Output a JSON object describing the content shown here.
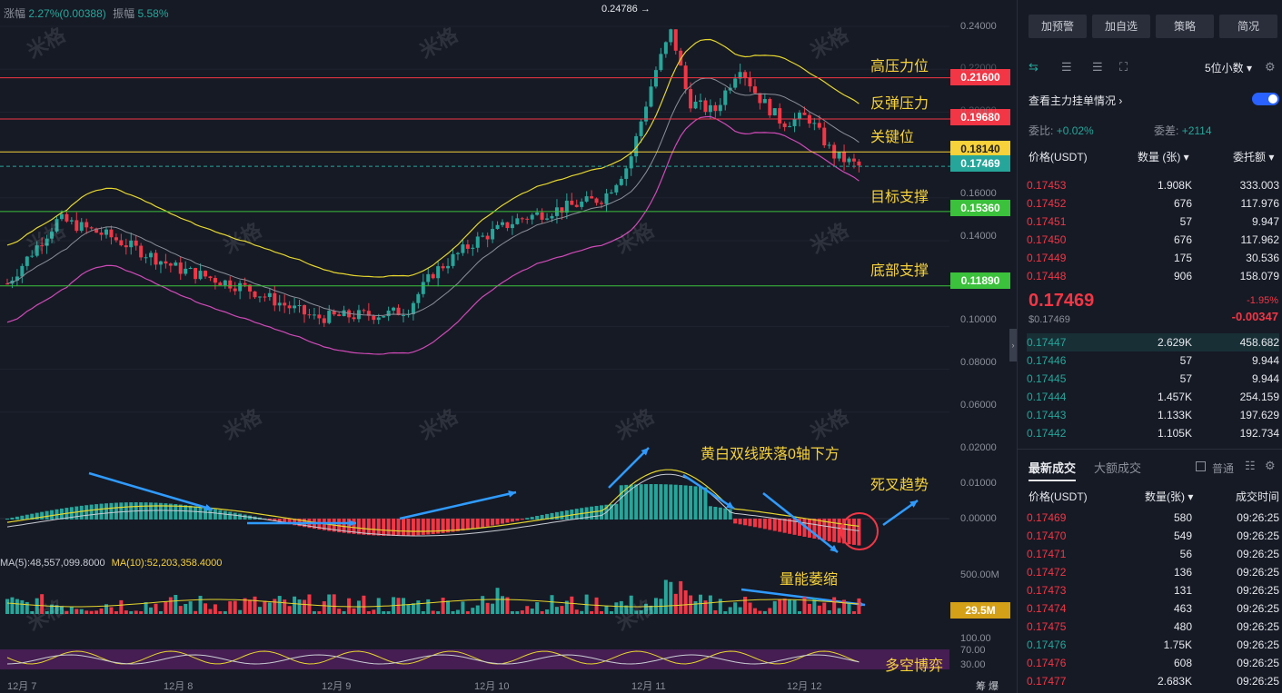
{
  "header": {
    "change_label": "涨幅",
    "change_value": "2.27%(0.00388)",
    "amp_label": "振幅",
    "amp_value": "5.58%"
  },
  "peak_label": "0.24786 →",
  "annotations": {
    "high": "高压力位",
    "rebound": "反弹压力",
    "key": "关键位",
    "target": "目标支撑",
    "bottom": "底部支撑",
    "macd_cross": "黄白双线跌落0轴下方",
    "death": "死叉趋势",
    "volume": "量能萎缩",
    "rsi": "多空博弈"
  },
  "levels": [
    {
      "v": "0.21600",
      "c": "#f23645"
    },
    {
      "v": "0.19680",
      "c": "#f23645"
    },
    {
      "v": "0.18140",
      "c": "#f7d23a"
    },
    {
      "v": "0.17469",
      "c": "#26a69a"
    },
    {
      "v": "0.15360",
      "c": "#3bc13b"
    },
    {
      "v": "0.11890",
      "c": "#3bc13b"
    }
  ],
  "price_axis": [
    "0.24000",
    "0.22000",
    "0.20000",
    "0.16000",
    "0.14000",
    "0.10000",
    "0.08000",
    "0.06000"
  ],
  "macd_axis": [
    "0.02000",
    "0.01000",
    "0.00000"
  ],
  "vol": {
    "ma5": "MA(5):48,557,099.8000",
    "ma10": "MA(10):52,203,358.4000",
    "axis": "500.00M",
    "current": "29.5M"
  },
  "rsi_axis": [
    "100.00",
    "70.00",
    "30.00"
  ],
  "dates": [
    "12月 7",
    "12月 8",
    "12月 9",
    "12月 10",
    "12月 11",
    "12月 12"
  ],
  "corner": "筹 爆",
  "watermark": "米格",
  "side": {
    "buttons": [
      "加预警",
      "加自选",
      "策略",
      "简况"
    ],
    "decimal": "5位小数",
    "depth_label": "查看主力挂单情况",
    "wei_bi": "委比:",
    "wei_bi_v": "+0.02%",
    "wei_cha": "委差:",
    "wei_cha_v": "+2114",
    "col_price": "价格(USDT)",
    "col_qty": "数量 (张)",
    "col_amt": "委托额",
    "asks": [
      [
        "0.17453",
        "1.908K",
        "333.003"
      ],
      [
        "0.17452",
        "676",
        "117.976"
      ],
      [
        "0.17451",
        "57",
        "9.947"
      ],
      [
        "0.17450",
        "676",
        "117.962"
      ],
      [
        "0.17449",
        "175",
        "30.536"
      ],
      [
        "0.17448",
        "906",
        "158.079"
      ]
    ],
    "last": "0.17469",
    "last_usd": "$0.17469",
    "last_pct": "-1.95%",
    "last_chg": "-0.00347",
    "bids": [
      [
        "0.17447",
        "2.629K",
        "458.682"
      ],
      [
        "0.17446",
        "57",
        "9.944"
      ],
      [
        "0.17445",
        "57",
        "9.944"
      ],
      [
        "0.17444",
        "1.457K",
        "254.159"
      ],
      [
        "0.17443",
        "1.133K",
        "197.629"
      ],
      [
        "0.17442",
        "1.105K",
        "192.734"
      ]
    ],
    "tab_latest": "最新成交",
    "tab_big": "大额成交",
    "normal": "普通",
    "t_price": "价格(USDT)",
    "t_qty": "数量(张)",
    "t_time": "成交时间",
    "trades": [
      [
        "0.17469",
        "580",
        "09:26:25",
        "r"
      ],
      [
        "0.17470",
        "549",
        "09:26:25",
        "r"
      ],
      [
        "0.17471",
        "56",
        "09:26:25",
        "r"
      ],
      [
        "0.17472",
        "136",
        "09:26:25",
        "r"
      ],
      [
        "0.17473",
        "131",
        "09:26:25",
        "r"
      ],
      [
        "0.17474",
        "463",
        "09:26:25",
        "r"
      ],
      [
        "0.17475",
        "480",
        "09:26:25",
        "r"
      ],
      [
        "0.17476",
        "1.75K",
        "09:26:25",
        "g"
      ],
      [
        "0.17476",
        "608",
        "09:26:25",
        "r"
      ],
      [
        "0.17477",
        "2.683K",
        "09:26:25",
        "r"
      ]
    ]
  },
  "colors": {
    "up": "#26a69a",
    "down": "#f23645",
    "yellow": "#f7d23a",
    "gold": "#f5c542"
  }
}
